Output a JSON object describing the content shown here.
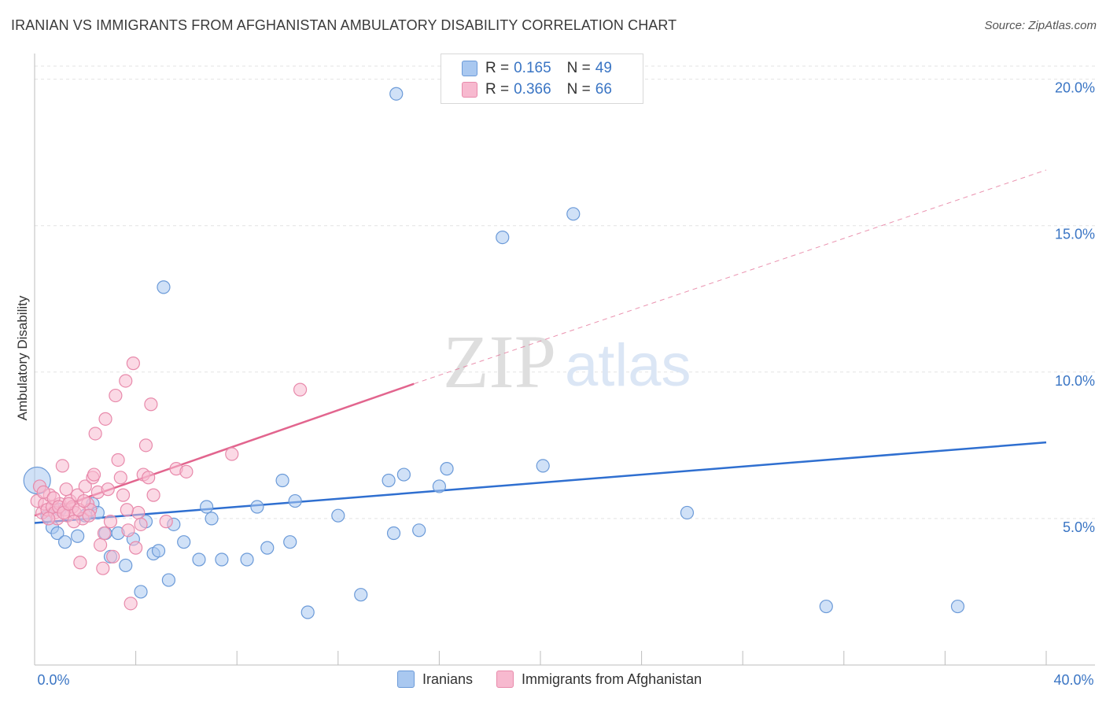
{
  "title": "IRANIAN VS IMMIGRANTS FROM AFGHANISTAN AMBULATORY DISABILITY CORRELATION CHART",
  "source": "Source: ZipAtlas.com",
  "watermark": {
    "zip": "ZIP",
    "atlas": "atlas"
  },
  "legend": {
    "rows": [
      {
        "r_label": "R =",
        "r_value": "0.165",
        "n_label": "N =",
        "n_value": "49",
        "color": "#a9c8f0"
      },
      {
        "r_label": "R =",
        "r_value": "0.366",
        "n_label": "N =",
        "n_value": "66",
        "color": "#f7b9cf"
      }
    ]
  },
  "bottom_legend": [
    {
      "label": "Iranians",
      "color": "#a9c8f0"
    },
    {
      "label": "Immigrants from Afghanistan",
      "color": "#f7b9cf"
    }
  ],
  "chart_data": {
    "type": "scatter",
    "title": "IRANIAN VS IMMIGRANTS FROM AFGHANISTAN AMBULATORY DISABILITY CORRELATION CHART",
    "xlabel": "",
    "ylabel": "Ambulatory Disability",
    "xlim": [
      0,
      40
    ],
    "ylim": [
      0,
      20.5
    ],
    "x_tick_labels": [
      "0.0%",
      "40.0%"
    ],
    "y_ticks": [
      5,
      10,
      15,
      20
    ],
    "y_tick_labels": [
      "5.0%",
      "10.0%",
      "15.0%",
      "20.0%"
    ],
    "grid": true,
    "series": [
      {
        "name": "Iranians",
        "color": "#a9c8f0",
        "edge": "#6b9ad8",
        "line_color": "#2f6fd0",
        "trend": {
          "x": [
            0,
            40
          ],
          "y": [
            4.85,
            7.6
          ]
        },
        "points": [
          [
            0.1,
            6.3
          ],
          [
            0.5,
            5.1
          ],
          [
            0.7,
            4.7
          ],
          [
            0.9,
            4.5
          ],
          [
            1.2,
            4.2
          ],
          [
            1.7,
            4.4
          ],
          [
            2.0,
            5.1
          ],
          [
            2.3,
            5.5
          ],
          [
            2.5,
            5.2
          ],
          [
            2.8,
            4.5
          ],
          [
            3.0,
            3.7
          ],
          [
            3.3,
            4.5
          ],
          [
            3.6,
            3.4
          ],
          [
            3.9,
            4.3
          ],
          [
            4.2,
            2.5
          ],
          [
            4.4,
            4.9
          ],
          [
            4.7,
            3.8
          ],
          [
            4.9,
            3.9
          ],
          [
            5.1,
            12.9
          ],
          [
            5.3,
            2.9
          ],
          [
            5.5,
            4.8
          ],
          [
            5.9,
            4.2
          ],
          [
            6.5,
            3.6
          ],
          [
            6.8,
            5.4
          ],
          [
            7.0,
            5.0
          ],
          [
            7.4,
            3.6
          ],
          [
            8.4,
            3.6
          ],
          [
            8.8,
            5.4
          ],
          [
            9.2,
            4.0
          ],
          [
            9.8,
            6.3
          ],
          [
            10.1,
            4.2
          ],
          [
            10.3,
            5.6
          ],
          [
            10.8,
            1.8
          ],
          [
            12.0,
            5.1
          ],
          [
            12.9,
            2.4
          ],
          [
            14.0,
            6.3
          ],
          [
            14.2,
            4.5
          ],
          [
            14.3,
            19.5
          ],
          [
            14.6,
            6.5
          ],
          [
            15.2,
            4.6
          ],
          [
            16.0,
            6.1
          ],
          [
            16.3,
            6.7
          ],
          [
            18.5,
            14.6
          ],
          [
            20.1,
            6.8
          ],
          [
            21.3,
            15.4
          ],
          [
            25.8,
            5.2
          ],
          [
            31.3,
            2.0
          ],
          [
            36.5,
            2.0
          ],
          [
            1.0,
            5.3
          ]
        ]
      },
      {
        "name": "Immigrants from Afghanistan",
        "color": "#f7b9cf",
        "edge": "#e88aab",
        "line_color": "#e2658e",
        "trend": {
          "x": [
            0,
            15
          ],
          "y": [
            5.1,
            9.6
          ]
        },
        "trend_dashed": {
          "x": [
            15,
            40
          ],
          "y": [
            9.6,
            16.9
          ]
        },
        "points": [
          [
            0.1,
            5.6
          ],
          [
            0.2,
            6.1
          ],
          [
            0.3,
            5.2
          ],
          [
            0.4,
            5.5
          ],
          [
            0.5,
            5.3
          ],
          [
            0.6,
            5.8
          ],
          [
            0.7,
            5.4
          ],
          [
            0.8,
            5.2
          ],
          [
            0.9,
            5.0
          ],
          [
            1.0,
            5.5
          ],
          [
            1.1,
            6.8
          ],
          [
            1.2,
            5.3
          ],
          [
            1.3,
            5.1
          ],
          [
            1.4,
            5.6
          ],
          [
            1.5,
            5.4
          ],
          [
            1.6,
            5.2
          ],
          [
            1.7,
            5.8
          ],
          [
            1.8,
            3.5
          ],
          [
            1.9,
            5.0
          ],
          [
            2.0,
            6.1
          ],
          [
            2.1,
            5.5
          ],
          [
            2.2,
            5.3
          ],
          [
            2.3,
            6.4
          ],
          [
            2.4,
            7.9
          ],
          [
            2.5,
            5.9
          ],
          [
            2.6,
            4.1
          ],
          [
            2.7,
            3.3
          ],
          [
            2.8,
            8.4
          ],
          [
            2.9,
            6.0
          ],
          [
            3.0,
            4.9
          ],
          [
            3.1,
            3.7
          ],
          [
            3.2,
            9.2
          ],
          [
            3.3,
            7.0
          ],
          [
            3.4,
            6.4
          ],
          [
            3.5,
            5.8
          ],
          [
            3.6,
            9.7
          ],
          [
            3.7,
            4.6
          ],
          [
            3.8,
            2.1
          ],
          [
            3.9,
            10.3
          ],
          [
            4.0,
            4.0
          ],
          [
            4.1,
            5.2
          ],
          [
            4.2,
            4.8
          ],
          [
            4.3,
            6.5
          ],
          [
            4.4,
            7.5
          ],
          [
            4.5,
            6.4
          ],
          [
            4.6,
            8.9
          ],
          [
            4.7,
            5.8
          ],
          [
            5.2,
            4.9
          ],
          [
            5.6,
            6.7
          ],
          [
            6.0,
            6.6
          ],
          [
            7.8,
            7.2
          ],
          [
            10.5,
            9.4
          ],
          [
            0.35,
            5.9
          ],
          [
            0.55,
            5.0
          ],
          [
            0.75,
            5.7
          ],
          [
            0.95,
            5.4
          ],
          [
            1.15,
            5.2
          ],
          [
            1.35,
            5.5
          ],
          [
            1.55,
            4.9
          ],
          [
            1.75,
            5.3
          ],
          [
            1.95,
            5.6
          ],
          [
            2.15,
            5.1
          ],
          [
            2.35,
            6.5
          ],
          [
            3.65,
            5.3
          ],
          [
            2.75,
            4.5
          ],
          [
            1.25,
            6.0
          ]
        ]
      }
    ]
  }
}
